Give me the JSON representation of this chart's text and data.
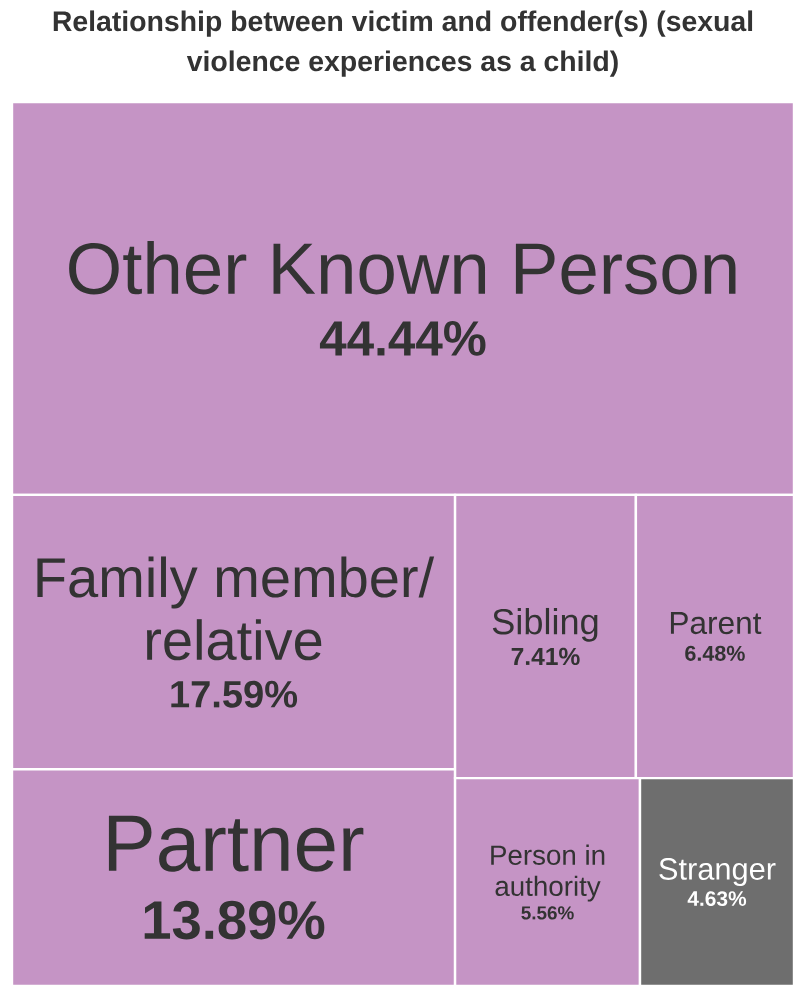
{
  "chart_data": {
    "type": "other",
    "title": "Relationship between victim and offender(s) (sexual violence experiences as a child)",
    "categories": [
      "Other Known Person",
      "Family member/ relative",
      "Partner",
      "Sibling",
      "Parent",
      "Person in authority",
      "Stranger"
    ],
    "values": [
      44.44,
      17.59,
      13.89,
      7.41,
      6.48,
      5.56,
      4.63
    ],
    "value_labels": [
      "44.44%",
      "17.59%",
      "13.89%",
      "7.41%",
      "6.48%",
      "5.56%",
      "4.63%"
    ],
    "colors": [
      "#c594c5",
      "#c594c5",
      "#c594c5",
      "#c594c5",
      "#c594c5",
      "#c594c5",
      "#6e6e6e"
    ]
  }
}
